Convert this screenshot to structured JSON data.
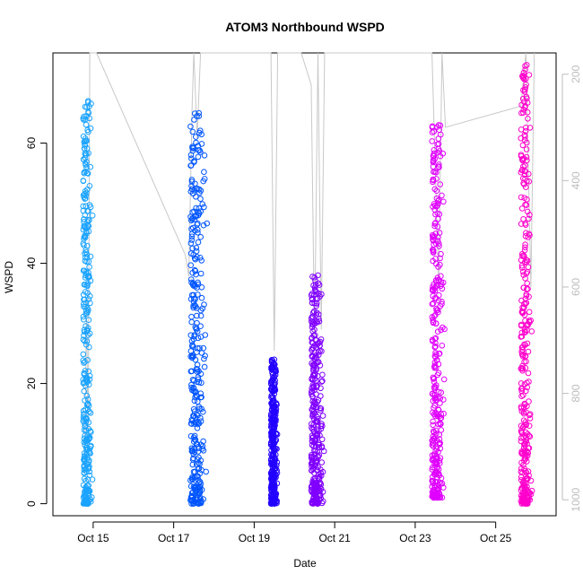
{
  "chart_data": {
    "type": "scatter",
    "title": "ATOM3 Northbound WSPD",
    "xlabel": "Date",
    "ylabel": "WSPD",
    "x_axis": {
      "type": "date",
      "range": [
        "2023-10-14T00:00",
        "2023-10-26T12:00"
      ],
      "ticks": [
        {
          "value": "2023-10-15",
          "label": "Oct 15"
        },
        {
          "value": "2023-10-17",
          "label": "Oct 17"
        },
        {
          "value": "2023-10-19",
          "label": "Oct 19"
        },
        {
          "value": "2023-10-21",
          "label": "Oct 21"
        },
        {
          "value": "2023-10-23",
          "label": "Oct 23"
        },
        {
          "value": "2023-10-25",
          "label": "Oct 25"
        }
      ]
    },
    "y_axis": {
      "range": [
        -2,
        75
      ],
      "ticks": [
        {
          "value": 0,
          "label": "0"
        },
        {
          "value": 20,
          "label": "20"
        },
        {
          "value": 40,
          "label": "40"
        },
        {
          "value": 60,
          "label": "60"
        }
      ]
    },
    "y2_axis": {
      "reversed": true,
      "range": [
        1030,
        160
      ],
      "color": "#bdbdbd",
      "ticks": [
        {
          "value": 200,
          "label": "200"
        },
        {
          "value": 400,
          "label": "400"
        },
        {
          "value": 600,
          "label": "600"
        },
        {
          "value": 800,
          "label": "800"
        },
        {
          "value": 1000,
          "label": "1000"
        }
      ]
    },
    "grid": false,
    "marker": "open-circle",
    "series": [
      {
        "color": "#1aa3ff",
        "x_start": "2023-10-14T18:00",
        "x_end": "2023-10-15T00:00",
        "y_min": 0,
        "y_max": 67
      },
      {
        "color": "#0055ff",
        "x_start": "2023-10-17T10:00",
        "x_end": "2023-10-17T20:00",
        "y_min": 0,
        "y_max": 65
      },
      {
        "color": "#2200ff",
        "x_start": "2023-10-19T10:00",
        "x_end": "2023-10-19T14:00",
        "y_min": 0,
        "y_max": 24
      },
      {
        "color": "#8000ff",
        "x_start": "2023-10-20T10:00",
        "x_end": "2023-10-20T18:00",
        "y_min": 0,
        "y_max": 38
      },
      {
        "color": "#e000ff",
        "x_start": "2023-10-23T10:00",
        "x_end": "2023-10-23T18:00",
        "y_min": 1,
        "y_max": 63
      },
      {
        "color": "#ff00cc",
        "x_start": "2023-10-25T15:00",
        "x_end": "2023-10-25T22:00",
        "y_min": 0,
        "y_max": 73
      }
    ],
    "overlay": {
      "type": "line",
      "color": "#c8c8c8",
      "axis": "y2",
      "points": [
        [
          "2023-10-14T19:00",
          950
        ],
        [
          "2023-10-14T20:00",
          620
        ],
        [
          "2023-10-14T21:00",
          900
        ],
        [
          "2023-10-14T22:00",
          150
        ],
        [
          "2023-10-15T02:00",
          150
        ],
        [
          "2023-10-17T07:00",
          540
        ],
        [
          "2023-10-17T09:00",
          580
        ],
        [
          "2023-10-17T11:00",
          260
        ],
        [
          "2023-10-17T12:00",
          150
        ],
        [
          "2023-10-17T14:00",
          320
        ],
        [
          "2023-10-17T16:00",
          150
        ],
        [
          "2023-10-17T18:00",
          150
        ],
        [
          "2023-10-19T10:00",
          150
        ],
        [
          "2023-10-19T12:00",
          720
        ],
        [
          "2023-10-19T14:00",
          150
        ],
        [
          "2023-10-20T04:00",
          150
        ],
        [
          "2023-10-20T10:00",
          220
        ],
        [
          "2023-10-20T12:00",
          700
        ],
        [
          "2023-10-20T14:00",
          150
        ],
        [
          "2023-10-20T16:00",
          680
        ],
        [
          "2023-10-20T18:00",
          150
        ],
        [
          "2023-10-23T10:00",
          150
        ],
        [
          "2023-10-23T14:00",
          600
        ],
        [
          "2023-10-23T16:00",
          150
        ],
        [
          "2023-10-23T18:00",
          300
        ],
        [
          "2023-10-25T15:00",
          260
        ],
        [
          "2023-10-25T18:00",
          150
        ],
        [
          "2023-10-25T21:00",
          600
        ],
        [
          "2023-10-25T23:00",
          150
        ]
      ]
    }
  }
}
